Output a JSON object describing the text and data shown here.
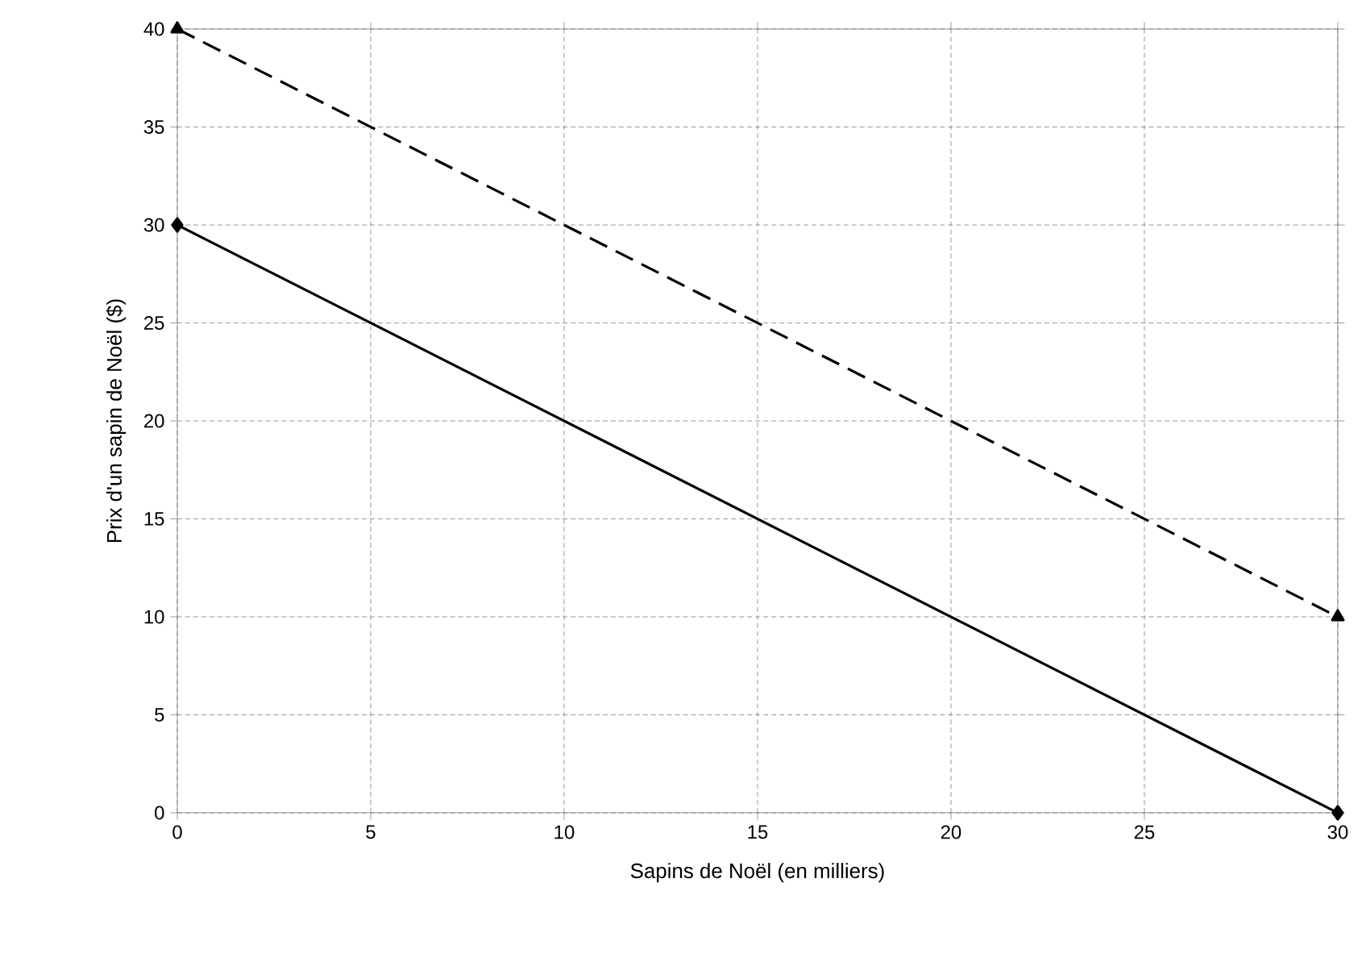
{
  "chart_data": {
    "type": "line",
    "xlabel": "Sapins de Noël (en milliers)",
    "ylabel": "Prix d'un sapin de Noël ($)",
    "x": [
      0,
      30
    ],
    "series": [
      {
        "color": "#000000",
        "values": [
          30,
          0
        ],
        "marker": "diamond",
        "line_style": "solid"
      },
      {
        "color": "#000000",
        "values": [
          40,
          10
        ],
        "marker": "triangle",
        "line_style": "dashed"
      }
    ],
    "xlim": [
      0,
      30
    ],
    "ylim": [
      0,
      40
    ],
    "xticks": [
      0,
      5,
      10,
      15,
      20,
      25,
      30
    ],
    "yticks": [
      0,
      5,
      10,
      15,
      20,
      25,
      30,
      35,
      40
    ],
    "grid": true
  }
}
